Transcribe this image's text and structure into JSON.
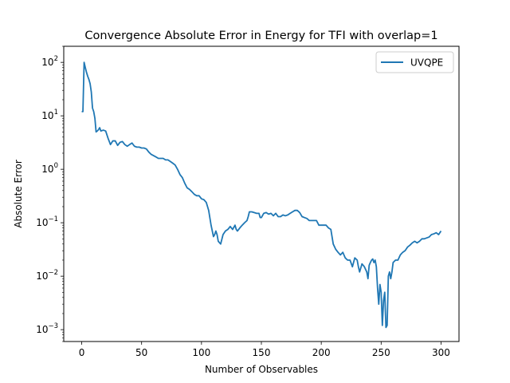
{
  "chart_data": {
    "type": "line",
    "title": "Convergence Absolute Error in Energy for TFI with overlap=1",
    "xlabel": "Number of Observables",
    "ylabel": "Absolute Error",
    "xlim": [
      -15,
      315
    ],
    "ylim": [
      0.0006,
      200
    ],
    "yscale": "log",
    "x_ticks": [
      0,
      50,
      100,
      150,
      200,
      250,
      300
    ],
    "y_ticks": [
      {
        "value": 0.001,
        "base": "10",
        "exp": "−3"
      },
      {
        "value": 0.01,
        "base": "10",
        "exp": "−2"
      },
      {
        "value": 0.1,
        "base": "10",
        "exp": "−1"
      },
      {
        "value": 1,
        "base": "10",
        "exp": "0"
      },
      {
        "value": 10,
        "base": "10",
        "exp": "1"
      },
      {
        "value": 100,
        "base": "10",
        "exp": "2"
      }
    ],
    "grid": false,
    "legend_position": "top-right",
    "series": [
      {
        "name": "UVQPE",
        "color": "#1f77b4",
        "points": [
          [
            0,
            12
          ],
          [
            1,
            12
          ],
          [
            2,
            100
          ],
          [
            3,
            80
          ],
          [
            4,
            65
          ],
          [
            5,
            55
          ],
          [
            6,
            48
          ],
          [
            7,
            40
          ],
          [
            8,
            28
          ],
          [
            9,
            14
          ],
          [
            10,
            12
          ],
          [
            11,
            9
          ],
          [
            12,
            5
          ],
          [
            13,
            5.2
          ],
          [
            14,
            5.5
          ],
          [
            15,
            6
          ],
          [
            16,
            5.2
          ],
          [
            18,
            5.4
          ],
          [
            20,
            5.2
          ],
          [
            22,
            3.8
          ],
          [
            24,
            2.9
          ],
          [
            26,
            3.4
          ],
          [
            28,
            3.4
          ],
          [
            30,
            2.8
          ],
          [
            32,
            3.2
          ],
          [
            34,
            3.3
          ],
          [
            36,
            2.9
          ],
          [
            38,
            2.7
          ],
          [
            40,
            2.9
          ],
          [
            42,
            3.1
          ],
          [
            44,
            2.7
          ],
          [
            46,
            2.6
          ],
          [
            48,
            2.6
          ],
          [
            50,
            2.5
          ],
          [
            52,
            2.5
          ],
          [
            54,
            2.4
          ],
          [
            56,
            2.1
          ],
          [
            58,
            1.9
          ],
          [
            60,
            1.8
          ],
          [
            62,
            1.7
          ],
          [
            64,
            1.6
          ],
          [
            66,
            1.6
          ],
          [
            68,
            1.6
          ],
          [
            70,
            1.5
          ],
          [
            72,
            1.5
          ],
          [
            74,
            1.4
          ],
          [
            76,
            1.3
          ],
          [
            78,
            1.2
          ],
          [
            80,
            1.0
          ],
          [
            82,
            0.8
          ],
          [
            84,
            0.7
          ],
          [
            86,
            0.55
          ],
          [
            88,
            0.45
          ],
          [
            90,
            0.42
          ],
          [
            92,
            0.38
          ],
          [
            94,
            0.34
          ],
          [
            96,
            0.32
          ],
          [
            98,
            0.32
          ],
          [
            100,
            0.28
          ],
          [
            102,
            0.27
          ],
          [
            104,
            0.24
          ],
          [
            106,
            0.17
          ],
          [
            108,
            0.09
          ],
          [
            110,
            0.055
          ],
          [
            111,
            0.06
          ],
          [
            112,
            0.07
          ],
          [
            113,
            0.06
          ],
          [
            114,
            0.045
          ],
          [
            116,
            0.04
          ],
          [
            118,
            0.06
          ],
          [
            120,
            0.07
          ],
          [
            122,
            0.075
          ],
          [
            124,
            0.085
          ],
          [
            126,
            0.075
          ],
          [
            128,
            0.09
          ],
          [
            129,
            0.075
          ],
          [
            130,
            0.07
          ],
          [
            132,
            0.08
          ],
          [
            134,
            0.09
          ],
          [
            136,
            0.1
          ],
          [
            138,
            0.11
          ],
          [
            139,
            0.13
          ],
          [
            140,
            0.16
          ],
          [
            142,
            0.16
          ],
          [
            144,
            0.155
          ],
          [
            146,
            0.15
          ],
          [
            148,
            0.15
          ],
          [
            149,
            0.125
          ],
          [
            150,
            0.125
          ],
          [
            152,
            0.15
          ],
          [
            154,
            0.155
          ],
          [
            156,
            0.145
          ],
          [
            158,
            0.15
          ],
          [
            160,
            0.135
          ],
          [
            162,
            0.15
          ],
          [
            164,
            0.13
          ],
          [
            166,
            0.13
          ],
          [
            168,
            0.14
          ],
          [
            170,
            0.135
          ],
          [
            172,
            0.14
          ],
          [
            174,
            0.15
          ],
          [
            176,
            0.16
          ],
          [
            178,
            0.17
          ],
          [
            180,
            0.17
          ],
          [
            182,
            0.155
          ],
          [
            184,
            0.13
          ],
          [
            186,
            0.125
          ],
          [
            188,
            0.12
          ],
          [
            190,
            0.11
          ],
          [
            192,
            0.11
          ],
          [
            194,
            0.11
          ],
          [
            196,
            0.11
          ],
          [
            198,
            0.09
          ],
          [
            200,
            0.09
          ],
          [
            202,
            0.09
          ],
          [
            204,
            0.09
          ],
          [
            206,
            0.08
          ],
          [
            208,
            0.075
          ],
          [
            210,
            0.04
          ],
          [
            212,
            0.032
          ],
          [
            214,
            0.028
          ],
          [
            216,
            0.025
          ],
          [
            218,
            0.028
          ],
          [
            220,
            0.022
          ],
          [
            222,
            0.02
          ],
          [
            224,
            0.02
          ],
          [
            226,
            0.015
          ],
          [
            228,
            0.022
          ],
          [
            230,
            0.02
          ],
          [
            231,
            0.015
          ],
          [
            232,
            0.012
          ],
          [
            234,
            0.017
          ],
          [
            236,
            0.015
          ],
          [
            238,
            0.012
          ],
          [
            239,
            0.009
          ],
          [
            240,
            0.016
          ],
          [
            241,
            0.018
          ],
          [
            242,
            0.02
          ],
          [
            243,
            0.021
          ],
          [
            244,
            0.018
          ],
          [
            245,
            0.02
          ],
          [
            246,
            0.015
          ],
          [
            247,
            0.006
          ],
          [
            248,
            0.003
          ],
          [
            249,
            0.007
          ],
          [
            250,
            0.005
          ],
          [
            251,
            0.0012
          ],
          [
            252,
            0.0035
          ],
          [
            253,
            0.005
          ],
          [
            254,
            0.0011
          ],
          [
            255,
            0.0012
          ],
          [
            256,
            0.01
          ],
          [
            257,
            0.012
          ],
          [
            258,
            0.009
          ],
          [
            259,
            0.012
          ],
          [
            260,
            0.018
          ],
          [
            262,
            0.02
          ],
          [
            264,
            0.02
          ],
          [
            266,
            0.025
          ],
          [
            268,
            0.028
          ],
          [
            270,
            0.03
          ],
          [
            272,
            0.035
          ],
          [
            274,
            0.038
          ],
          [
            276,
            0.042
          ],
          [
            278,
            0.045
          ],
          [
            280,
            0.042
          ],
          [
            282,
            0.045
          ],
          [
            284,
            0.05
          ],
          [
            286,
            0.05
          ],
          [
            288,
            0.052
          ],
          [
            290,
            0.054
          ],
          [
            292,
            0.06
          ],
          [
            294,
            0.062
          ],
          [
            296,
            0.065
          ],
          [
            298,
            0.06
          ],
          [
            299,
            0.065
          ],
          [
            300,
            0.07
          ]
        ]
      }
    ]
  }
}
